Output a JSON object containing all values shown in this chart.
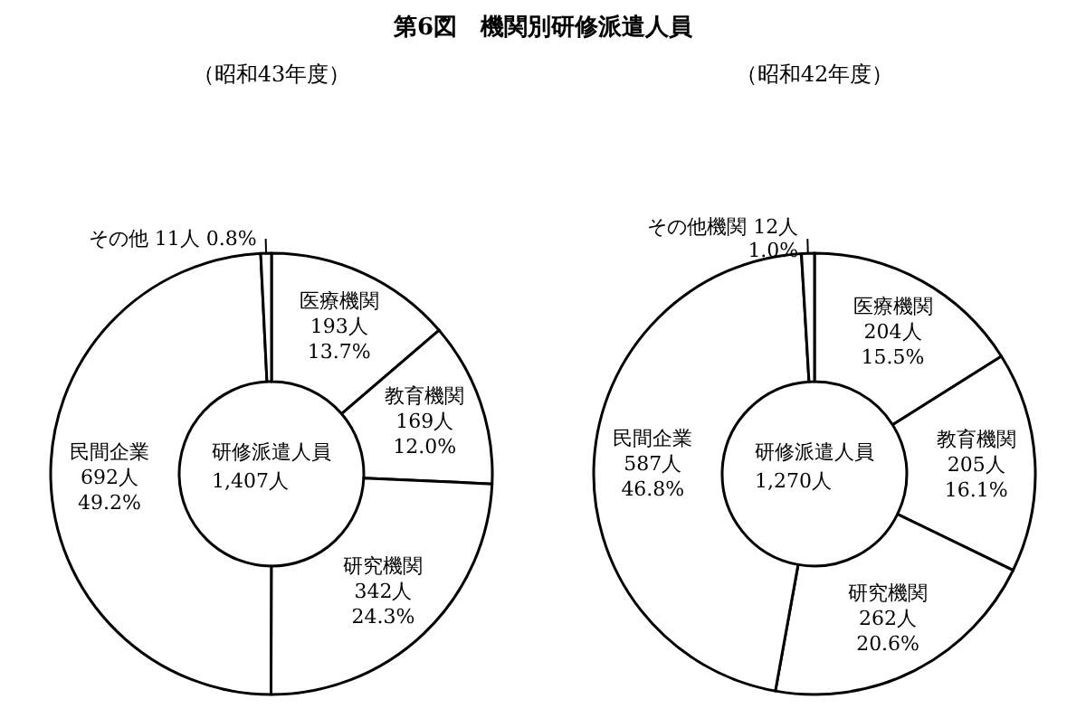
{
  "chart_data": [
    {
      "type": "donut",
      "title": "第6図　機関別研修派遣人員",
      "subtitle": "（昭和43年度）",
      "categories": [
        "医療機関",
        "教育機関",
        "研究機関",
        "民間企業",
        "その他"
      ],
      "values": [
        193,
        169,
        342,
        692,
        11
      ],
      "value_labels": [
        "193人\n13.7%",
        "169人\n12.0%",
        "342人\n24.3%",
        "692人\n49.2%",
        "11人 0.8%"
      ],
      "colors": [
        "#ffffff",
        "#ffffff",
        "#ffffff",
        "#ffffff",
        "#ffffff"
      ],
      "annotations": [
        "研修派遣人員\n1,407人"
      ]
    },
    {
      "type": "donut",
      "subtitle": "（昭和42年度）",
      "categories": [
        "医療機関",
        "教育機関",
        "研究機関",
        "民間企業",
        "その他機関"
      ],
      "values": [
        204,
        205,
        262,
        587,
        12
      ],
      "value_labels": [
        "204人\n15.5%",
        "205人\n16.1%",
        "262人\n20.6%",
        "587人\n46.8%",
        "12人\n1.0%"
      ],
      "colors": [
        "#ffffff",
        "#ffffff",
        "#ffffff",
        "#ffffff",
        "#ffffff"
      ],
      "annotations": [
        "研修派遣人員\n1,270人"
      ]
    }
  ]
}
